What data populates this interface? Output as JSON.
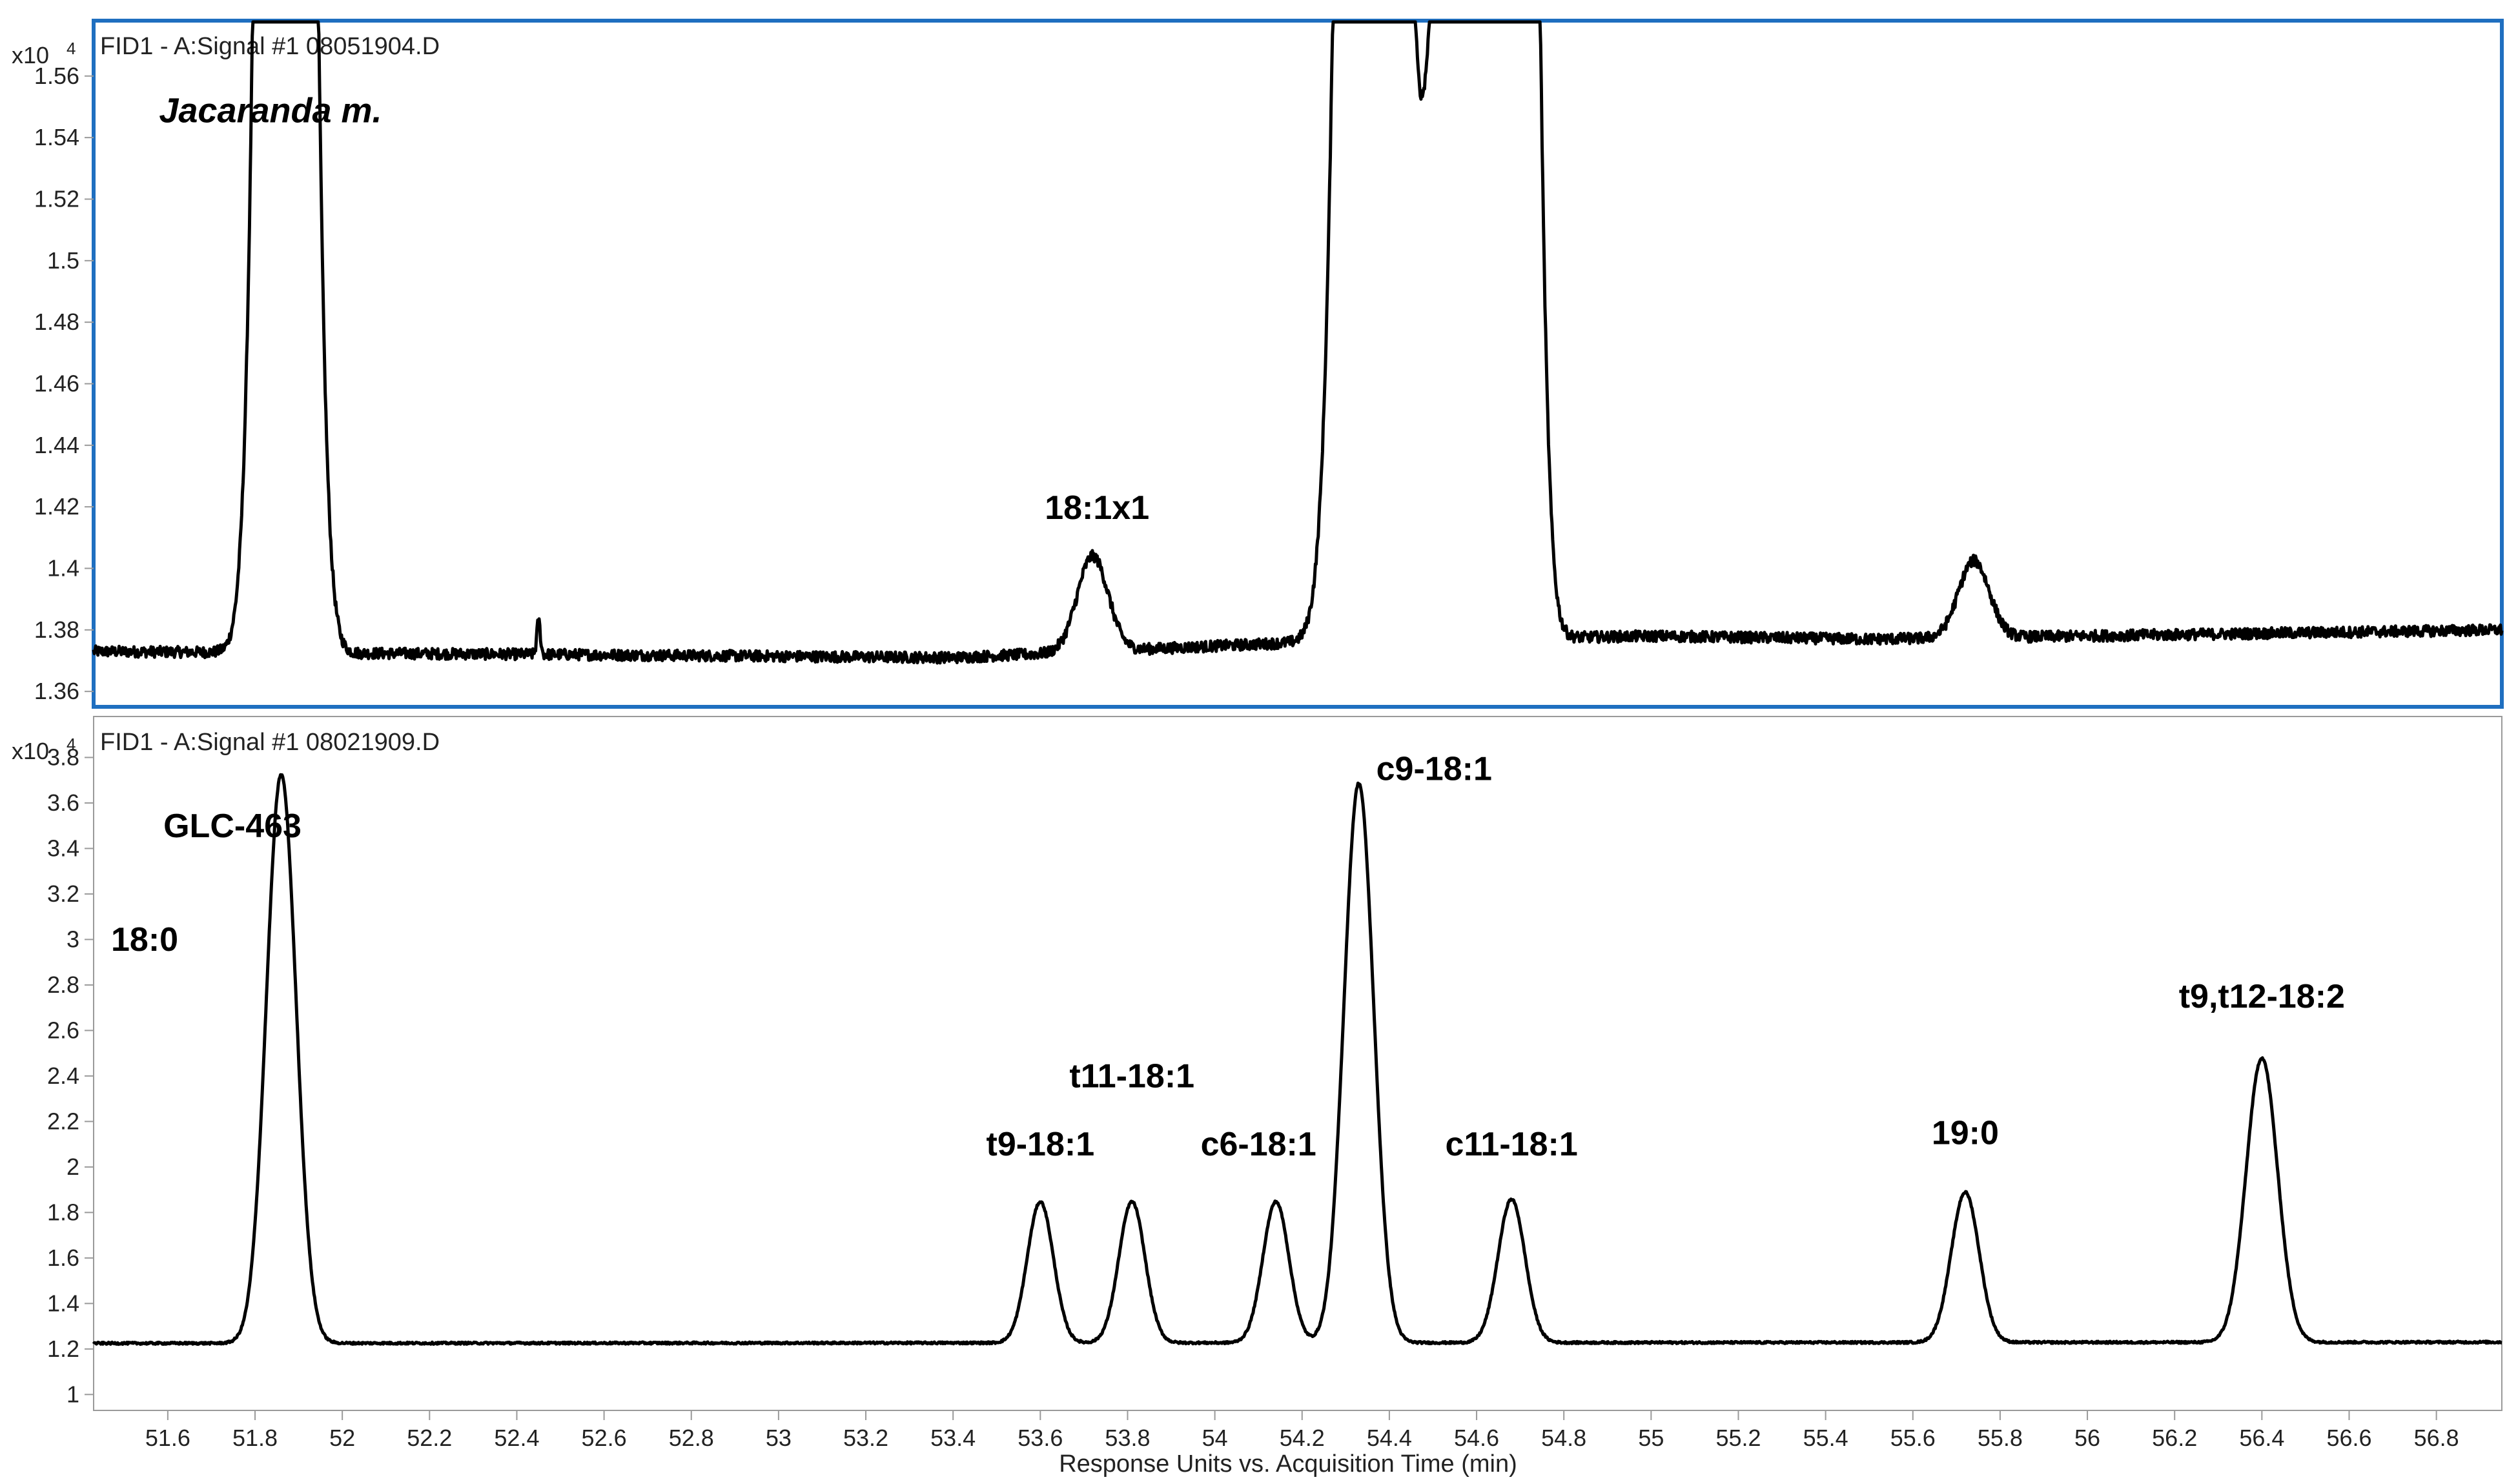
{
  "chart_data": {
    "type": "line",
    "x_axis": {
      "label": "Response Units vs. Acquisition Time (min)",
      "range": [
        51.43,
        56.95
      ],
      "ticks": [
        51.6,
        51.8,
        52,
        52.2,
        52.4,
        52.6,
        52.8,
        53,
        53.2,
        53.4,
        53.6,
        53.8,
        54,
        54.2,
        54.4,
        54.6,
        54.8,
        55,
        55.2,
        55.4,
        55.6,
        55.8,
        56,
        56.2,
        56.4,
        56.6,
        56.8
      ],
      "tick_labels": [
        "51.6",
        "51.8",
        "52",
        "52.2",
        "52.4",
        "52.6",
        "52.8",
        "53",
        "53.2",
        "53.4",
        "53.6",
        "53.8",
        "54",
        "54.2",
        "54.4",
        "54.6",
        "54.8",
        "55",
        "55.2",
        "55.4",
        "55.6",
        "55.8",
        "56",
        "56.2",
        "56.4",
        "56.6",
        "56.8"
      ]
    },
    "panels": [
      {
        "header": "FID1 - A:Signal #1 08051904.D",
        "multiplier": "x10",
        "exponent": "4",
        "y_range": [
          1.355,
          1.578
        ],
        "y_ticks": [
          1.36,
          1.38,
          1.4,
          1.42,
          1.44,
          1.46,
          1.48,
          1.5,
          1.52,
          1.54,
          1.56
        ],
        "y_tick_labels": [
          "1.36",
          "1.38",
          "1.4",
          "1.42",
          "1.44",
          "1.46",
          "1.48",
          "1.5",
          "1.52",
          "1.54",
          "1.56"
        ],
        "selected": true,
        "baseline": 1.374,
        "noise": 0.0018,
        "drift": [
          [
            51.43,
            1.373
          ],
          [
            52.5,
            1.372
          ],
          [
            53.4,
            1.371
          ],
          [
            54.2,
            1.376
          ],
          [
            55,
            1.378
          ],
          [
            55.5,
            1.377
          ],
          [
            56.95,
            1.38
          ]
        ],
        "peaks": [
          {
            "rt": 51.87,
            "height": 1.5,
            "width": 0.038
          },
          {
            "rt": 52.45,
            "height": 0.011,
            "width": 0.004
          },
          {
            "rt": 53.72,
            "height": 0.031,
            "width": 0.035
          },
          {
            "rt": 54.36,
            "height": 1.5,
            "width": 0.045
          },
          {
            "rt": 54.54,
            "height": 0.3,
            "width": 0.048
          },
          {
            "rt": 54.68,
            "height": 1.2,
            "width": 0.035
          },
          {
            "rt": 55.74,
            "height": 0.025,
            "width": 0.035
          }
        ],
        "annotations": [
          {
            "text": "Jacaranda m.",
            "x": 51.58,
            "y": 1.545,
            "italic": true
          },
          {
            "text": "18:1x1",
            "x": 53.73,
            "y": 1.416,
            "anchor": "middle"
          }
        ]
      },
      {
        "header": "FID1 - A:Signal #1 08021909.D",
        "multiplier": "x10",
        "exponent": "4",
        "y_range": [
          0.93,
          3.98
        ],
        "y_ticks": [
          1,
          1.2,
          1.4,
          1.6,
          1.8,
          2,
          2.2,
          2.4,
          2.6,
          2.8,
          3,
          3.2,
          3.4,
          3.6,
          3.8
        ],
        "y_tick_labels": [
          "1",
          "1.2",
          "1.4",
          "1.6",
          "1.8",
          "2",
          "2.2",
          "2.4",
          "2.6",
          "2.8",
          "3",
          "3.2",
          "3.4",
          "3.6",
          "3.8"
        ],
        "selected": false,
        "baseline": 1.225,
        "noise": 0.0045,
        "drift": [
          [
            51.43,
            1.225
          ],
          [
            56.95,
            1.23
          ]
        ],
        "peaks": [
          {
            "rt": 51.86,
            "height": 2.5,
            "width": 0.034
          },
          {
            "rt": 53.6,
            "height": 0.62,
            "width": 0.03
          },
          {
            "rt": 53.81,
            "height": 0.62,
            "width": 0.03
          },
          {
            "rt": 54.14,
            "height": 0.62,
            "width": 0.03
          },
          {
            "rt": 54.33,
            "height": 2.46,
            "width": 0.034
          },
          {
            "rt": 54.68,
            "height": 0.63,
            "width": 0.031
          },
          {
            "rt": 55.72,
            "height": 0.66,
            "width": 0.032
          },
          {
            "rt": 56.4,
            "height": 1.25,
            "width": 0.036
          }
        ],
        "annotations": [
          {
            "text": "GLC-463",
            "x": 51.59,
            "y": 3.45
          },
          {
            "text": "18:0",
            "x": 51.47,
            "y": 2.95
          },
          {
            "text": "t9-18:1",
            "x": 53.6,
            "y": 2.05,
            "anchor": "middle"
          },
          {
            "text": "t11-18:1",
            "x": 53.81,
            "y": 2.35,
            "anchor": "middle"
          },
          {
            "text": "c6-18:1",
            "x": 54.1,
            "y": 2.05,
            "anchor": "middle"
          },
          {
            "text": "c9-18:1",
            "x": 54.37,
            "y": 3.7
          },
          {
            "text": "c11-18:1",
            "x": 54.68,
            "y": 2.05,
            "anchor": "middle"
          },
          {
            "text": "19:0",
            "x": 55.72,
            "y": 2.1,
            "anchor": "middle"
          },
          {
            "text": "t9,t12-18:2",
            "x": 56.4,
            "y": 2.7,
            "anchor": "middle"
          }
        ]
      }
    ]
  },
  "colors": {
    "trace": "#000000",
    "frame": "#9a9a9a",
    "selected_frame": "#1f6fc0",
    "text": "#222222"
  }
}
